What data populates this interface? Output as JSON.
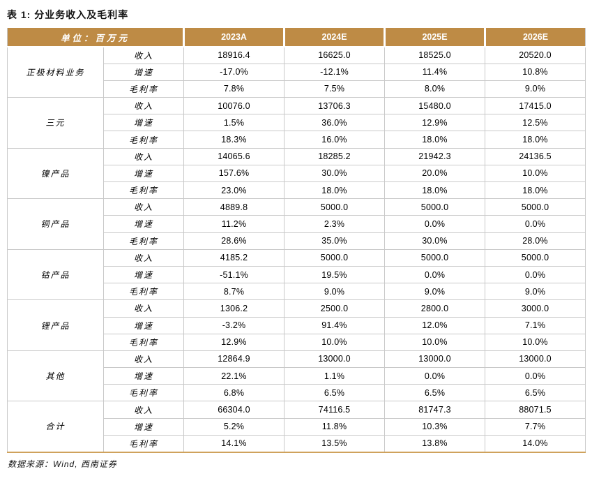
{
  "page": {
    "title": "表 1: 分业务收入及毛利率",
    "source_note": "数据来源：Wind, 西南证券"
  },
  "colors": {
    "header_bg": "#BE8B45",
    "header_text": "#FFFFFF",
    "grid_line": "#C9C9C9",
    "bottom_border": "#CFA25C",
    "body_text": "#000000"
  },
  "table": {
    "unit_label": "单位：百万元",
    "year_columns": [
      "2023A",
      "2024E",
      "2025E",
      "2026E"
    ],
    "groups": [
      {
        "name": "正极材料业务",
        "rows": [
          {
            "metric": "收入",
            "values": [
              "18916.4",
              "16625.0",
              "18525.0",
              "20520.0"
            ]
          },
          {
            "metric": "增速",
            "values": [
              "-17.0%",
              "-12.1%",
              "11.4%",
              "10.8%"
            ]
          },
          {
            "metric": "毛利率",
            "values": [
              "7.8%",
              "7.5%",
              "8.0%",
              "9.0%"
            ]
          }
        ]
      },
      {
        "name": "三元",
        "rows": [
          {
            "metric": "收入",
            "values": [
              "10076.0",
              "13706.3",
              "15480.0",
              "17415.0"
            ]
          },
          {
            "metric": "增速",
            "values": [
              "1.5%",
              "36.0%",
              "12.9%",
              "12.5%"
            ]
          },
          {
            "metric": "毛利率",
            "values": [
              "18.3%",
              "16.0%",
              "18.0%",
              "18.0%"
            ]
          }
        ]
      },
      {
        "name": "镍产品",
        "rows": [
          {
            "metric": "收入",
            "values": [
              "14065.6",
              "18285.2",
              "21942.3",
              "24136.5"
            ]
          },
          {
            "metric": "增速",
            "values": [
              "157.6%",
              "30.0%",
              "20.0%",
              "10.0%"
            ]
          },
          {
            "metric": "毛利率",
            "values": [
              "23.0%",
              "18.0%",
              "18.0%",
              "18.0%"
            ]
          }
        ]
      },
      {
        "name": "铜产品",
        "rows": [
          {
            "metric": "收入",
            "values": [
              "4889.8",
              "5000.0",
              "5000.0",
              "5000.0"
            ]
          },
          {
            "metric": "增速",
            "values": [
              "11.2%",
              "2.3%",
              "0.0%",
              "0.0%"
            ]
          },
          {
            "metric": "毛利率",
            "values": [
              "28.6%",
              "35.0%",
              "30.0%",
              "28.0%"
            ]
          }
        ]
      },
      {
        "name": "钴产品",
        "rows": [
          {
            "metric": "收入",
            "values": [
              "4185.2",
              "5000.0",
              "5000.0",
              "5000.0"
            ]
          },
          {
            "metric": "增速",
            "values": [
              "-51.1%",
              "19.5%",
              "0.0%",
              "0.0%"
            ]
          },
          {
            "metric": "毛利率",
            "values": [
              "8.7%",
              "9.0%",
              "9.0%",
              "9.0%"
            ]
          }
        ]
      },
      {
        "name": "锂产品",
        "rows": [
          {
            "metric": "收入",
            "values": [
              "1306.2",
              "2500.0",
              "2800.0",
              "3000.0"
            ]
          },
          {
            "metric": "增速",
            "values": [
              "-3.2%",
              "91.4%",
              "12.0%",
              "7.1%"
            ]
          },
          {
            "metric": "毛利率",
            "values": [
              "12.9%",
              "10.0%",
              "10.0%",
              "10.0%"
            ]
          }
        ]
      },
      {
        "name": "其他",
        "rows": [
          {
            "metric": "收入",
            "values": [
              "12864.9",
              "13000.0",
              "13000.0",
              "13000.0"
            ]
          },
          {
            "metric": "增速",
            "values": [
              "22.1%",
              "1.1%",
              "0.0%",
              "0.0%"
            ]
          },
          {
            "metric": "毛利率",
            "values": [
              "6.8%",
              "6.5%",
              "6.5%",
              "6.5%"
            ]
          }
        ]
      },
      {
        "name": "合计",
        "rows": [
          {
            "metric": "收入",
            "values": [
              "66304.0",
              "74116.5",
              "81747.3",
              "88071.5"
            ]
          },
          {
            "metric": "增速",
            "values": [
              "5.2%",
              "11.8%",
              "10.3%",
              "7.7%"
            ]
          },
          {
            "metric": "毛利率",
            "values": [
              "14.1%",
              "13.5%",
              "13.8%",
              "14.0%"
            ]
          }
        ]
      }
    ]
  }
}
